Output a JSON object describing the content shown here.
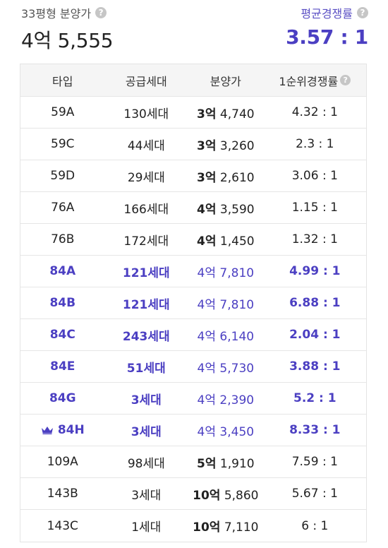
{
  "summary": {
    "left_label": "33평형 분양가",
    "left_value": "4억 5,555",
    "right_label": "평균경쟁률",
    "right_value": "3.57 : 1"
  },
  "table": {
    "headers": [
      "타입",
      "공급세대",
      "분양가",
      "1순위경쟁률"
    ],
    "rows": [
      {
        "type": "59A",
        "supply": "130세대",
        "price_eok": "3억",
        "price_rest": "4,740",
        "rate": "4.32 : 1"
      },
      {
        "type": "59C",
        "supply": "44세대",
        "price_eok": "3억",
        "price_rest": "3,260",
        "rate": "2.3 : 1"
      },
      {
        "type": "59D",
        "supply": "29세대",
        "price_eok": "3억",
        "price_rest": "2,610",
        "rate": "3.06 : 1"
      },
      {
        "type": "76A",
        "supply": "166세대",
        "price_eok": "4억",
        "price_rest": "3,590",
        "rate": "1.15 : 1"
      },
      {
        "type": "76B",
        "supply": "172세대",
        "price_eok": "4억",
        "price_rest": "1,450",
        "rate": "1.32 : 1"
      },
      {
        "type": "84A",
        "supply": "121세대",
        "price_eok": "4억",
        "price_rest": "7,810",
        "rate": "4.99 : 1"
      },
      {
        "type": "84B",
        "supply": "121세대",
        "price_eok": "4억",
        "price_rest": "7,810",
        "rate": "6.88 : 1"
      },
      {
        "type": "84C",
        "supply": "243세대",
        "price_eok": "4억",
        "price_rest": "6,140",
        "rate": "2.04 : 1"
      },
      {
        "type": "84E",
        "supply": "51세대",
        "price_eok": "4억",
        "price_rest": "5,730",
        "rate": "3.88 : 1"
      },
      {
        "type": "84G",
        "supply": "3세대",
        "price_eok": "4억",
        "price_rest": "2,390",
        "rate": "5.2 : 1"
      },
      {
        "type": "84H",
        "supply": "3세대",
        "price_eok": "4억",
        "price_rest": "3,450",
        "rate": "8.33 : 1"
      },
      {
        "type": "109A",
        "supply": "98세대",
        "price_eok": "5억",
        "price_rest": "1,910",
        "rate": "7.59 : 1"
      },
      {
        "type": "143B",
        "supply": "3세대",
        "price_eok": "10억",
        "price_rest": "5,860",
        "rate": "5.67 : 1"
      },
      {
        "type": "143C",
        "supply": "1세대",
        "price_eok": "10억",
        "price_rest": "7,110",
        "rate": "6 : 1"
      }
    ]
  },
  "icons": {
    "help": "question-circle-icon",
    "top_rate": "crown-icon"
  },
  "colors": {
    "accent": "#4b3fc2",
    "header_bg": "#f5f5f5",
    "help_icon": "#c6c6c6"
  }
}
